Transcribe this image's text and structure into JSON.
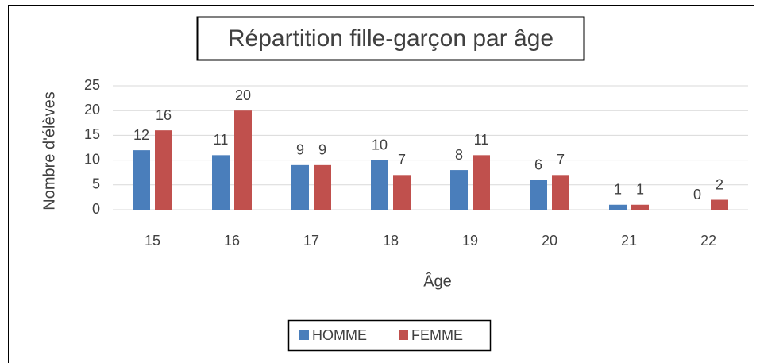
{
  "chart_data": {
    "type": "bar",
    "title": "Répartition fille-garçon par âge",
    "x_label": "Âge",
    "y_label": "Nombre d'élèves",
    "categories": [
      "15",
      "16",
      "17",
      "18",
      "19",
      "20",
      "21",
      "22"
    ],
    "series": [
      {
        "name": "HOMME",
        "color": "#4a7ebb",
        "values": [
          12,
          11,
          9,
          10,
          8,
          6,
          1,
          0
        ]
      },
      {
        "name": "FEMME",
        "color": "#c0504d",
        "values": [
          16,
          20,
          9,
          7,
          11,
          7,
          1,
          2
        ]
      }
    ],
    "ylim": [
      0,
      25
    ],
    "yticks": [
      0,
      5,
      10,
      15,
      20,
      25
    ],
    "grid": true,
    "legend": "bottom"
  }
}
